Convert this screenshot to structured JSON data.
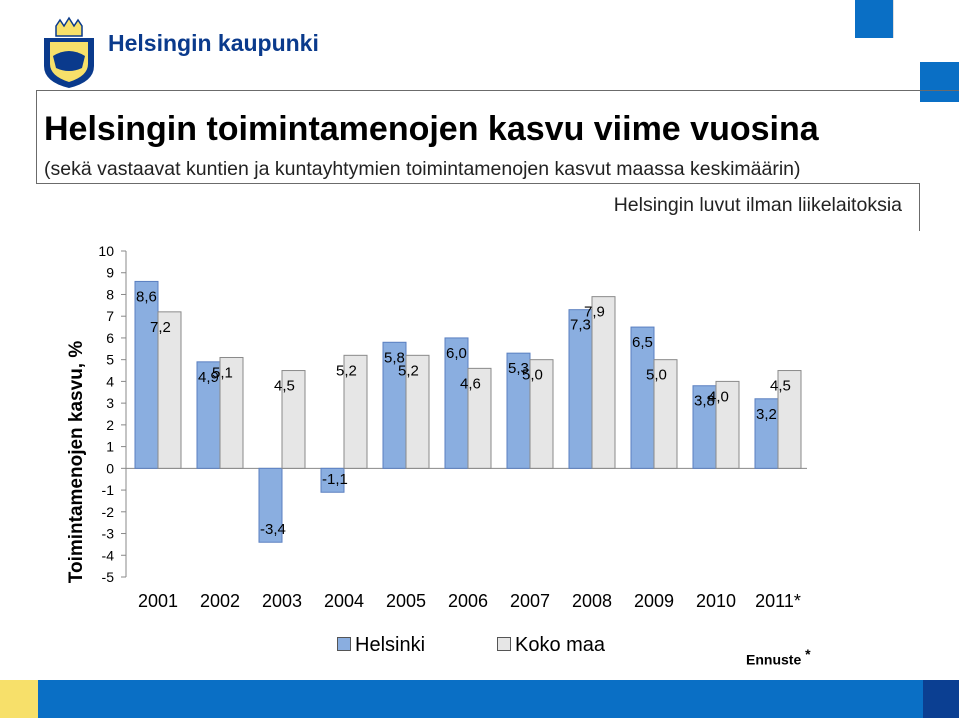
{
  "header": {
    "brand": "Helsingin kaupunki",
    "title": "Helsingin toimintamenojen kasvu viime vuosina",
    "subtitle": "(sekä vastaavat kuntien ja kuntayhtymien toimintamenojen kasvut maassa keskimäärin)",
    "note": "Helsingin luvut ilman liikelaitoksia"
  },
  "colors": {
    "helsinki": "#8aaee0",
    "koko_maa": "#e6e6e6",
    "brand_blue": "#0a6fc5",
    "dark_blue": "#0b3f92",
    "yellow": "#f7e06a"
  },
  "chart_data": {
    "type": "bar",
    "title": "",
    "xlabel": "",
    "ylabel": "Toimintamenojen kasvu, %",
    "ylim": [
      -5,
      10
    ],
    "yticks": [
      "10",
      "9",
      "8",
      "7",
      "6",
      "5",
      "4",
      "3",
      "2",
      "1",
      "0",
      "-1",
      "-2",
      "-3",
      "-4",
      "-5"
    ],
    "categories": [
      "2001",
      "2002",
      "2003",
      "2004",
      "2005",
      "2006",
      "2007",
      "2008",
      "2009",
      "2010",
      "2011*"
    ],
    "series": [
      {
        "name": "Helsinki",
        "values": [
          8.6,
          4.9,
          -3.4,
          -1.1,
          5.8,
          6.0,
          5.3,
          7.3,
          6.5,
          3.8,
          3.2
        ],
        "labels": [
          "8,6",
          "4,9",
          "-3,4",
          "-1,1",
          "5,8",
          "6,0",
          "5,3",
          "7,3",
          "6,5",
          "3,8",
          "3,2"
        ]
      },
      {
        "name": "Koko maa",
        "values": [
          7.2,
          5.1,
          4.5,
          5.2,
          5.2,
          4.6,
          5.0,
          7.9,
          5.0,
          4.0,
          4.5
        ],
        "labels": [
          "7,2",
          "5,1",
          "4,5",
          "5,2",
          "5,2",
          "4,6",
          "5,0",
          "7,9",
          "5,0",
          "4,0",
          "4,5"
        ]
      }
    ],
    "legend": {
      "placement": "bottom",
      "items": [
        "Helsinki",
        "Koko maa"
      ]
    },
    "footnote": {
      "text": "Ennuste",
      "mark": "*"
    }
  }
}
